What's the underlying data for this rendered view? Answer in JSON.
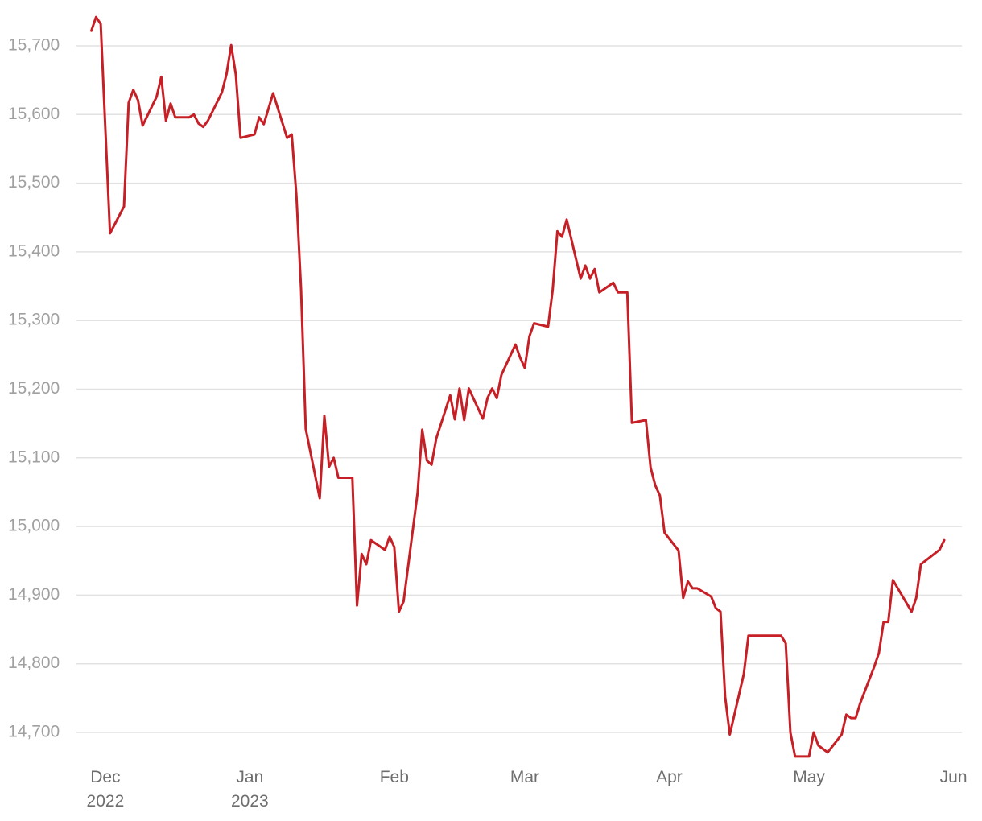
{
  "chart_data": {
    "type": "line",
    "color": "#c62026",
    "grid": true,
    "x": [
      -3,
      -2,
      -1,
      1,
      4,
      5,
      6,
      7,
      8,
      11,
      12,
      13,
      14,
      15,
      18,
      19,
      20,
      21,
      22,
      25,
      26,
      27,
      28,
      29,
      32,
      33,
      34,
      36,
      39,
      40,
      41,
      42,
      43,
      45,
      46,
      47,
      48,
      49,
      50,
      53,
      54,
      55,
      56,
      57,
      60,
      61,
      62,
      63,
      64,
      67,
      68,
      69,
      70,
      71,
      74,
      75,
      76,
      77,
      78,
      81,
      82,
      83,
      84,
      85,
      88,
      89,
      90,
      91,
      92,
      95,
      96,
      97,
      98,
      99,
      102,
      103,
      104,
      105,
      106,
      109,
      110,
      112,
      113,
      116,
      117,
      118,
      119,
      120,
      123,
      124,
      125,
      126,
      127,
      130,
      131,
      132,
      133,
      134,
      137,
      138,
      145,
      146,
      147,
      148,
      151,
      152,
      153,
      155,
      158,
      159,
      160,
      161,
      162,
      165,
      166,
      167,
      168,
      169,
      173,
      174,
      175,
      179,
      180
    ],
    "values": [
      15722,
      15742,
      15732,
      15427,
      15466,
      15617,
      15636,
      15621,
      15584,
      15626,
      15655,
      15591,
      15616,
      15596,
      15596,
      15600,
      15587,
      15582,
      15591,
      15632,
      15659,
      15701,
      15658,
      15566,
      15571,
      15596,
      15586,
      15631,
      15566,
      15571,
      15482,
      15345,
      15142,
      15075,
      15041,
      15161,
      15087,
      15100,
      15071,
      15071,
      14885,
      14960,
      14945,
      14980,
      14966,
      14985,
      14970,
      14876,
      14891,
      15049,
      15141,
      15096,
      15090,
      15128,
      15191,
      15156,
      15201,
      15155,
      15201,
      15157,
      15187,
      15201,
      15187,
      15221,
      15265,
      15246,
      15231,
      15277,
      15296,
      15291,
      15345,
      15430,
      15422,
      15447,
      15361,
      15380,
      15361,
      15375,
      15341,
      15355,
      15341,
      15341,
      15151,
      15155,
      15086,
      15060,
      15045,
      14991,
      14965,
      14896,
      14920,
      14910,
      14910,
      14898,
      14881,
      14876,
      14752,
      14697,
      14785,
      14841,
      14841,
      14830,
      14700,
      14665,
      14665,
      14700,
      14681,
      14671,
      14697,
      14726,
      14721,
      14721,
      14743,
      14796,
      14816,
      14861,
      14861,
      14922,
      14876,
      14896,
      14945,
      14966,
      14980
    ],
    "xlim": [
      -6.2,
      183.8
    ],
    "xticks": [
      {
        "value": 0,
        "label": "Dec 2022"
      },
      {
        "value": 31,
        "label": "Jan 2023"
      },
      {
        "value": 62,
        "label": "Feb"
      },
      {
        "value": 90,
        "label": "Mar"
      },
      {
        "value": 121,
        "label": "Apr"
      },
      {
        "value": 151,
        "label": "May"
      },
      {
        "value": 182,
        "label": "Jun"
      }
    ],
    "ylim": [
      14650,
      15750
    ],
    "yticks": [
      {
        "value": 14700,
        "label": "14,700"
      },
      {
        "value": 14800,
        "label": "14,800"
      },
      {
        "value": 14900,
        "label": "14,900"
      },
      {
        "value": 15000,
        "label": "15,000"
      },
      {
        "value": 15100,
        "label": "15,100"
      },
      {
        "value": 15200,
        "label": "15,200"
      },
      {
        "value": 15300,
        "label": "15,300"
      },
      {
        "value": 15400,
        "label": "15,400"
      },
      {
        "value": 15500,
        "label": "15,500"
      },
      {
        "value": 15600,
        "label": "15,600"
      },
      {
        "value": 15700,
        "label": "15,700"
      }
    ]
  }
}
